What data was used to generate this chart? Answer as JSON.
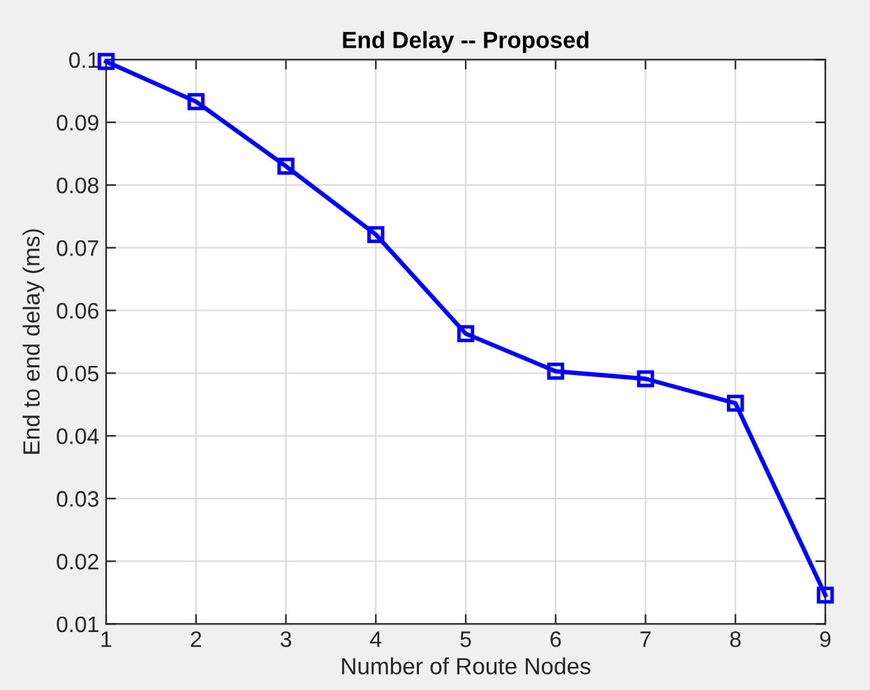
{
  "chart_data": {
    "type": "line",
    "title": "End Delay -- Proposed",
    "xlabel": "Number of Route Nodes",
    "ylabel": "End to end delay (ms)",
    "x": [
      1,
      2,
      3,
      4,
      5,
      6,
      7,
      8,
      9
    ],
    "series": [
      {
        "color": "#0000ff",
        "values": [
          0.0997,
          0.0933,
          0.083,
          0.0721,
          0.0563,
          0.0503,
          0.0491,
          0.0452,
          0.0146
        ]
      }
    ],
    "xlim": [
      1,
      9
    ],
    "xticks": [
      1,
      2,
      3,
      4,
      5,
      6,
      7,
      8,
      9
    ],
    "ylim": [
      0.01,
      0.1
    ],
    "yticks": [
      0.01,
      0.02,
      0.03,
      0.04,
      0.05,
      0.06,
      0.07,
      0.08,
      0.09,
      0.1
    ],
    "grid": true,
    "marker": "square",
    "line_style": "solid"
  }
}
